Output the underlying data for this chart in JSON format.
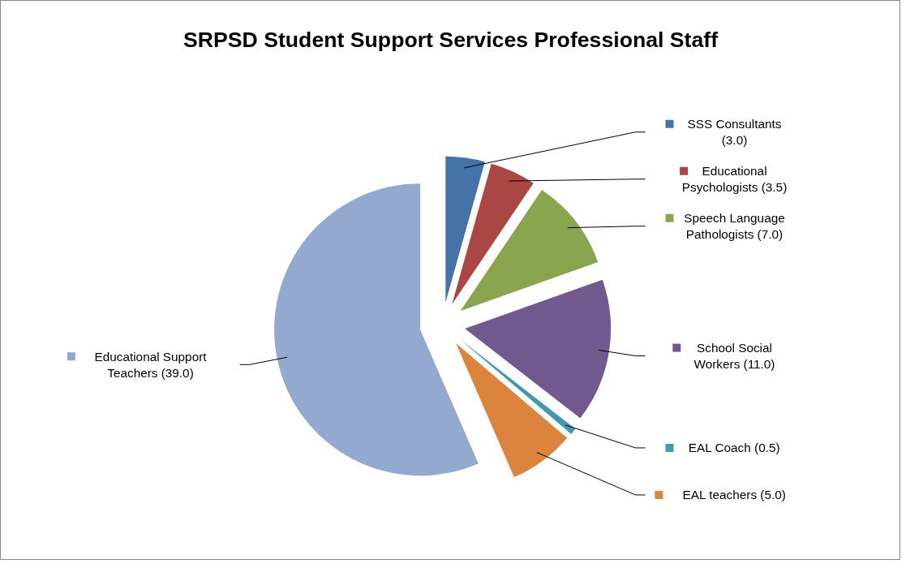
{
  "chart_data": {
    "type": "pie",
    "title": "SRPSD Student Support Services Professional Staff",
    "categories": [
      "SSS Consultants",
      "Educational Psychologists",
      "Speech Language Pathologists",
      "School Social Workers",
      "EAL Coach",
      "EAL teachers",
      "Educational Support Teachers"
    ],
    "values": [
      3.0,
      3.5,
      7.0,
      11.0,
      0.5,
      5.0,
      39.0
    ],
    "value_labels": [
      "(3.0)",
      "(3.5)",
      "(7.0)",
      "(11.0)",
      "(0.5)",
      "(5.0)",
      "(39.0)"
    ],
    "legend": "right",
    "colors": [
      "#4572a7",
      "#aa4643",
      "#89a54e",
      "#71588f",
      "#4198af",
      "#db843d",
      "#93a9cf"
    ]
  }
}
